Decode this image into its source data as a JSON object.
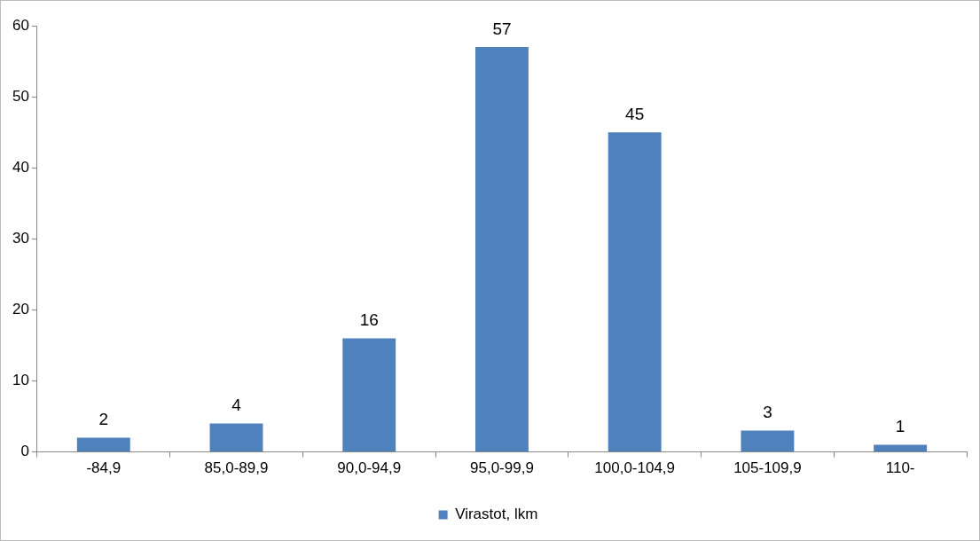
{
  "chart_data": {
    "type": "bar",
    "categories": [
      "-84,9",
      "85,0-89,9",
      "90,0-94,9",
      "95,0-99,9",
      "100,0-104,9",
      "105-109,9",
      "110-"
    ],
    "series": [
      {
        "name": "Virastot, lkm",
        "color": "#4f81bd",
        "values": [
          2,
          4,
          16,
          57,
          45,
          3,
          1
        ]
      }
    ],
    "ylim": [
      0,
      60
    ],
    "yticks": [
      0,
      10,
      20,
      30,
      40,
      50,
      60
    ],
    "grid": false,
    "legend": "bottom",
    "data_labels": true
  }
}
